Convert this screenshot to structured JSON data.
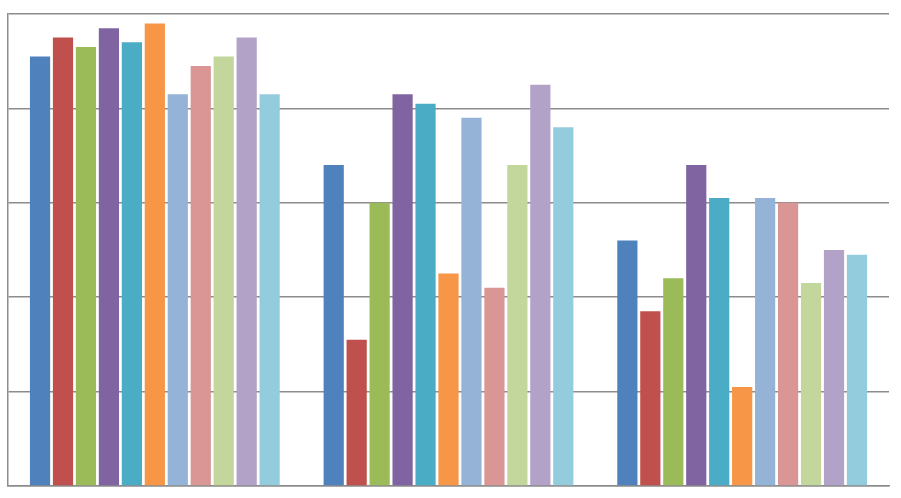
{
  "chart_data": {
    "type": "bar",
    "categories": [
      null,
      null,
      null
    ],
    "series": [
      {
        "color": "#4F81BD",
        "values": [
          4.55,
          3.4,
          2.6
        ]
      },
      {
        "color": "#C0504D",
        "values": [
          4.75,
          1.55,
          1.85
        ]
      },
      {
        "color": "#9BBB59",
        "values": [
          4.65,
          3.0,
          2.2
        ]
      },
      {
        "color": "#8064A2",
        "values": [
          4.85,
          4.15,
          3.4
        ]
      },
      {
        "color": "#4BACC6",
        "values": [
          4.7,
          4.05,
          3.05
        ]
      },
      {
        "color": "#F79646",
        "values": [
          4.9,
          2.25,
          1.05
        ]
      },
      {
        "color": "#95B3D7",
        "values": [
          4.15,
          3.9,
          3.05
        ]
      },
      {
        "color": "#D99694",
        "values": [
          4.45,
          2.1,
          3.0
        ]
      },
      {
        "color": "#C3D69B",
        "values": [
          4.55,
          3.4,
          2.15
        ]
      },
      {
        "color": "#B2A2C7",
        "values": [
          4.75,
          4.25,
          2.5
        ]
      },
      {
        "color": "#93CDDD",
        "values": [
          4.15,
          3.8,
          2.45
        ]
      }
    ],
    "ylim": [
      0,
      5
    ],
    "yticks": [
      0,
      1,
      2,
      3,
      4,
      5
    ],
    "grid": true,
    "tick_labels": false
  }
}
